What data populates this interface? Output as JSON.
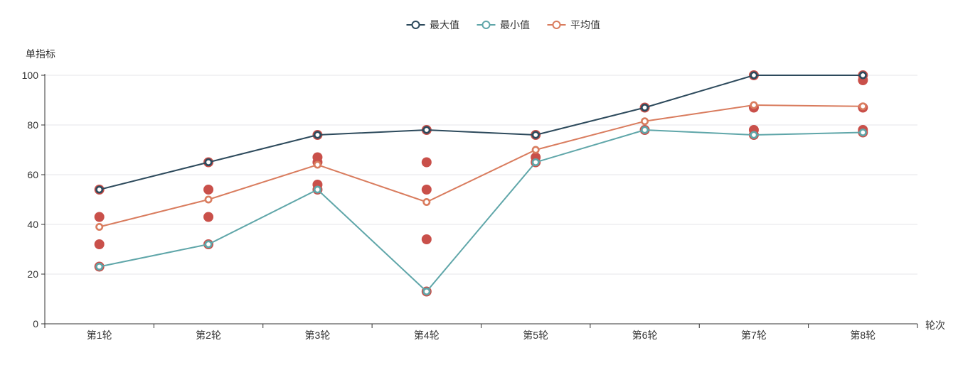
{
  "chart_data": {
    "type": "line",
    "categories": [
      "第1轮",
      "第2轮",
      "第3轮",
      "第4轮",
      "第5轮",
      "第6轮",
      "第7轮",
      "第8轮"
    ],
    "xlabel": "轮次",
    "ylabel": "单指标",
    "ylim": [
      0,
      100
    ],
    "yticks": [
      0,
      20,
      40,
      60,
      80,
      100
    ],
    "grid": true,
    "legend_position": "top-center",
    "series": [
      {
        "key": "max",
        "name": "最大值",
        "type": "line",
        "color": "#2d4a5c",
        "values": [
          54,
          65,
          76,
          78,
          76,
          87,
          100,
          100
        ]
      },
      {
        "key": "min",
        "name": "最小值",
        "type": "line",
        "color": "#5fa6a9",
        "values": [
          23,
          32,
          54,
          13,
          65,
          78,
          76,
          77
        ]
      },
      {
        "key": "avg",
        "name": "平均值",
        "type": "line",
        "color": "#d97c5e",
        "values": [
          39,
          50,
          64,
          49,
          70,
          81.5,
          88,
          87.5
        ]
      }
    ],
    "scatter": {
      "color": "#c9504a",
      "points_by_category": [
        [
          54,
          43,
          32,
          23
        ],
        [
          65,
          54,
          43,
          32
        ],
        [
          76,
          67,
          65,
          56,
          54
        ],
        [
          78,
          65,
          54,
          34,
          13
        ],
        [
          76,
          67,
          65
        ],
        [
          87,
          78
        ],
        [
          100,
          87,
          78,
          76
        ],
        [
          100,
          98,
          87,
          78,
          77
        ]
      ]
    },
    "axis_color": "#333333",
    "grid_color": "#e5e5ea",
    "label_color": "#333333"
  }
}
